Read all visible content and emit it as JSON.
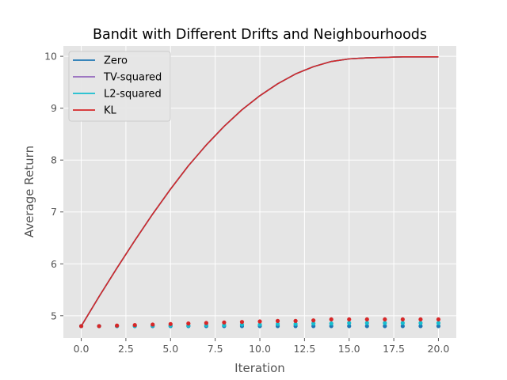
{
  "chart_data": {
    "type": "line",
    "title": "Bandit with Different Drifts and Neighbourhoods",
    "xlabel": "Iteration",
    "ylabel": "Average Return",
    "xlim": [
      -1.0,
      21.0
    ],
    "ylim": [
      4.57,
      10.2
    ],
    "xticks": [
      0.0,
      2.5,
      5.0,
      7.5,
      10.0,
      12.5,
      15.0,
      17.5,
      20.0
    ],
    "xtick_labels": [
      "0.0",
      "2.5",
      "5.0",
      "7.5",
      "10.0",
      "12.5",
      "15.0",
      "17.5",
      "20.0"
    ],
    "yticks": [
      5,
      6,
      7,
      8,
      9,
      10
    ],
    "ytick_labels": [
      "5",
      "6",
      "7",
      "8",
      "9",
      "10"
    ],
    "grid": true,
    "legend_position": "top-left",
    "x": [
      0,
      1,
      2,
      3,
      4,
      5,
      6,
      7,
      8,
      9,
      10,
      11,
      12,
      13,
      14,
      15,
      16,
      17,
      18,
      19,
      20
    ],
    "series": [
      {
        "name": "Zero",
        "color": "#1f77b4",
        "style": "line",
        "values": [
          4.8,
          5.37,
          5.92,
          6.45,
          6.96,
          7.44,
          7.89,
          8.29,
          8.65,
          8.97,
          9.24,
          9.47,
          9.66,
          9.8,
          9.9,
          9.95,
          9.97,
          9.98,
          9.99,
          9.99,
          9.99
        ]
      },
      {
        "name": "TV-squared",
        "color": "#9467bd",
        "style": "line",
        "values": [
          4.8,
          5.37,
          5.92,
          6.45,
          6.96,
          7.44,
          7.89,
          8.29,
          8.65,
          8.97,
          9.24,
          9.47,
          9.66,
          9.8,
          9.9,
          9.95,
          9.97,
          9.98,
          9.99,
          9.99,
          9.99
        ]
      },
      {
        "name": "L2-squared",
        "color": "#17becf",
        "style": "line",
        "values": [
          4.8,
          5.37,
          5.92,
          6.45,
          6.96,
          7.44,
          7.89,
          8.29,
          8.65,
          8.97,
          9.24,
          9.47,
          9.66,
          9.8,
          9.9,
          9.95,
          9.97,
          9.98,
          9.99,
          9.99,
          9.99
        ]
      },
      {
        "name": "KL",
        "color": "#d62728",
        "style": "line",
        "values": [
          4.8,
          5.37,
          5.92,
          6.45,
          6.96,
          7.44,
          7.89,
          8.29,
          8.65,
          8.97,
          9.24,
          9.47,
          9.66,
          9.8,
          9.9,
          9.95,
          9.97,
          9.98,
          9.99,
          9.99,
          9.99
        ]
      }
    ],
    "point_series": [
      {
        "color": "#1f77b4",
        "values": [
          4.8,
          4.8,
          4.8,
          4.8,
          4.8,
          4.8,
          4.8,
          4.8,
          4.8,
          4.8,
          4.8,
          4.8,
          4.8,
          4.8,
          4.8,
          4.8,
          4.8,
          4.8,
          4.8,
          4.8,
          4.8
        ]
      },
      {
        "color": "#17becf",
        "values": [
          4.8,
          4.8,
          4.8,
          4.8,
          4.81,
          4.81,
          4.81,
          4.82,
          4.82,
          4.83,
          4.83,
          4.84,
          4.84,
          4.85,
          4.85,
          4.86,
          4.86,
          4.86,
          4.86,
          4.86,
          4.86
        ]
      },
      {
        "color": "#d62728",
        "values": [
          4.8,
          4.8,
          4.81,
          4.82,
          4.83,
          4.84,
          4.85,
          4.86,
          4.87,
          4.88,
          4.89,
          4.9,
          4.9,
          4.91,
          4.93,
          4.93,
          4.93,
          4.93,
          4.93,
          4.93,
          4.93
        ]
      }
    ]
  }
}
